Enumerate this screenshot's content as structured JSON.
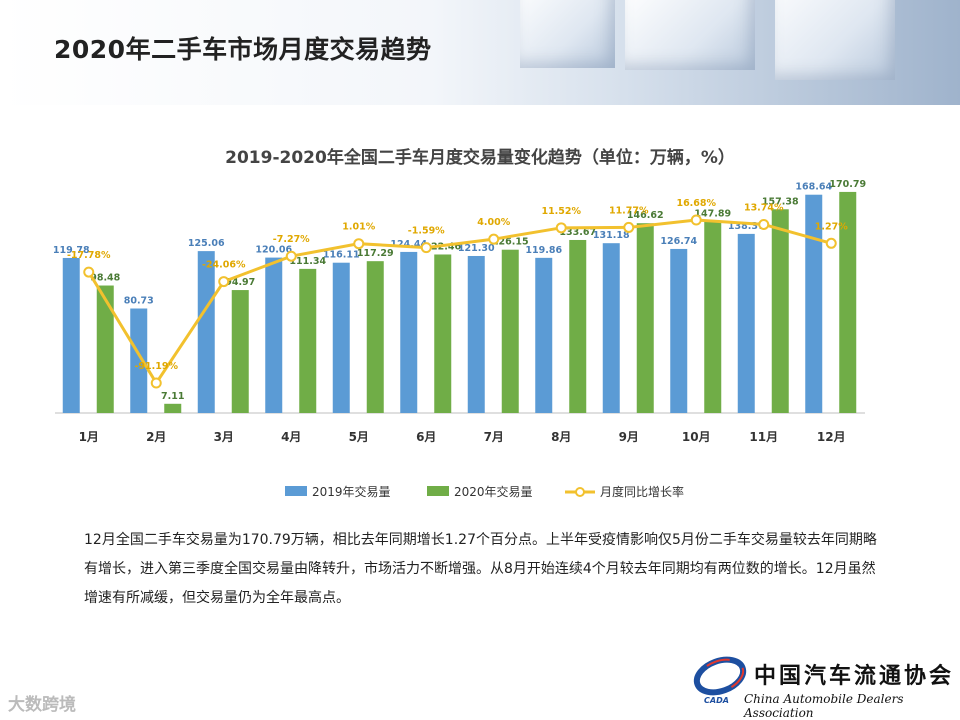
{
  "header": {
    "title": "2020年二手车市场月度交易趋势"
  },
  "chart_data": {
    "type": "bar",
    "title": "2019-2020年全国二手车月度交易量变化趋势（单位：万辆，%）",
    "categories": [
      "1月",
      "2月",
      "3月",
      "4月",
      "5月",
      "6月",
      "7月",
      "8月",
      "9月",
      "10月",
      "11月",
      "12月"
    ],
    "series": [
      {
        "name": "2019年交易量",
        "type": "bar",
        "color": "#5b9bd5",
        "values": [
          119.78,
          80.73,
          125.06,
          120.06,
          116.11,
          124.44,
          121.3,
          119.86,
          131.18,
          126.74,
          138.37,
          168.64
        ]
      },
      {
        "name": "2020年交易量",
        "type": "bar",
        "color": "#70ad47",
        "values": [
          98.48,
          7.11,
          94.97,
          111.34,
          117.29,
          122.46,
          126.15,
          133.67,
          146.62,
          147.89,
          157.38,
          170.79
        ]
      },
      {
        "name": "月度同比增长率",
        "type": "line",
        "color": "#f2c12e",
        "values": [
          -17.78,
          -91.19,
          -24.06,
          -7.27,
          1.01,
          -1.59,
          4.0,
          11.52,
          11.77,
          16.68,
          13.74,
          1.27
        ]
      }
    ],
    "legend_position": "bottom",
    "ylim": [
      0,
      180
    ],
    "y2lim": [
      -100,
      60
    ]
  },
  "description": "12月全国二手车交易量为170.79万辆，相比去年同期增长1.27个百分点。上半年受疫情影响仅5月份二手车交易量较去年同期略有增长，进入第三季度全国交易量由降转升，市场活力不断增强。从8月开始连续4个月较去年同期均有两位数的增长。12月虽然增速有所减缓，但交易量仍为全年最高点。",
  "logo": {
    "name_cn": "中国汽车流通协会",
    "name_en": "China Automobile Dealers Association",
    "abbr": "CADA"
  },
  "watermark": "大数跨境",
  "colors": {
    "bar2019": "#5b9bd5",
    "bar2020": "#70ad47",
    "line": "#f2c12e"
  }
}
